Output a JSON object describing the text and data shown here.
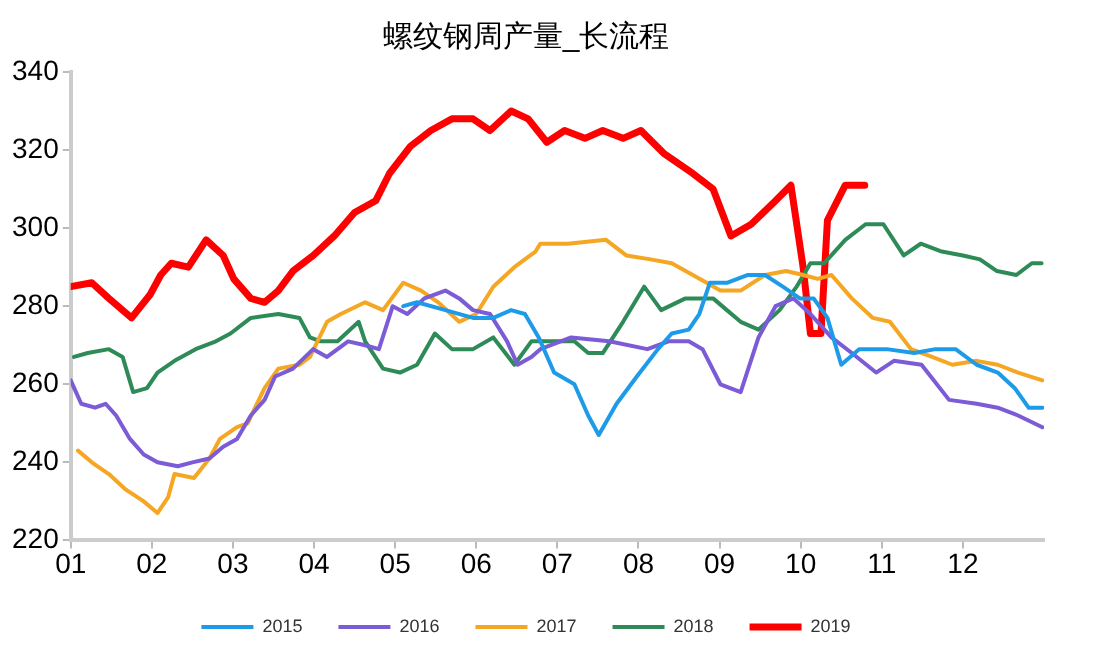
{
  "chart_data": {
    "type": "line",
    "title": "螺纹钢周产量_长流程",
    "xlim": [
      1,
      13
    ],
    "xticks": [
      {
        "value": 1,
        "label": "01"
      },
      {
        "value": 2,
        "label": "02"
      },
      {
        "value": 3,
        "label": "03"
      },
      {
        "value": 4,
        "label": "04"
      },
      {
        "value": 5,
        "label": "05"
      },
      {
        "value": 6,
        "label": "06"
      },
      {
        "value": 7,
        "label": "07"
      },
      {
        "value": 8,
        "label": "08"
      },
      {
        "value": 9,
        "label": "09"
      },
      {
        "value": 10,
        "label": "10"
      },
      {
        "value": 11,
        "label": "11"
      },
      {
        "value": 12,
        "label": "12"
      }
    ],
    "ylim": [
      220,
      340
    ],
    "yticks": [
      220,
      240,
      260,
      280,
      300,
      320,
      340
    ],
    "grid": false,
    "legend": "bottom",
    "marker": "none",
    "line_style": "solid",
    "series": [
      {
        "name": "2015",
        "color": "#1e9be8",
        "x": [
          5.1,
          5.27,
          5.62,
          5.96,
          6.21,
          6.43,
          6.6,
          6.77,
          6.96,
          7.21,
          7.38,
          7.51,
          7.73,
          7.98,
          8.24,
          8.41,
          8.62,
          8.75,
          8.88,
          9.09,
          9.35,
          9.56,
          9.78,
          9.99,
          10.16,
          10.33,
          10.5,
          10.72,
          11.06,
          11.4,
          11.66,
          11.91,
          12.17,
          12.43,
          12.64,
          12.81,
          12.98
        ],
        "values": [
          280,
          281,
          279,
          277,
          277,
          279,
          278,
          272,
          263,
          260,
          252,
          247,
          255,
          262,
          269,
          273,
          274,
          278,
          286,
          286,
          288,
          288,
          285,
          282,
          282,
          277,
          265,
          269,
          269,
          268,
          269,
          269,
          265,
          263,
          259,
          254,
          254
        ]
      },
      {
        "name": "2016",
        "color": "#7b5bd6",
        "x": [
          1.0,
          1.13,
          1.3,
          1.43,
          1.56,
          1.73,
          1.9,
          2.07,
          2.32,
          2.5,
          2.71,
          2.88,
          3.05,
          3.22,
          3.39,
          3.52,
          3.74,
          3.99,
          4.16,
          4.42,
          4.63,
          4.8,
          4.97,
          5.15,
          5.36,
          5.62,
          5.79,
          5.96,
          6.17,
          6.38,
          6.51,
          6.68,
          6.79,
          7.17,
          7.64,
          8.11,
          8.37,
          8.62,
          8.79,
          9.01,
          9.26,
          9.48,
          9.69,
          9.91,
          10.12,
          10.38,
          10.63,
          10.93,
          11.15,
          11.49,
          11.83,
          12.17,
          12.43,
          12.68,
          12.98
        ],
        "values": [
          261,
          255,
          254,
          255,
          252,
          246,
          242,
          240,
          239,
          240,
          241,
          244,
          246,
          252,
          256,
          262,
          264,
          269,
          267,
          271,
          270,
          269,
          280,
          278,
          282,
          284,
          282,
          279,
          278,
          271,
          265,
          267,
          269,
          272,
          271,
          269,
          271,
          271,
          269,
          260,
          258,
          272,
          280,
          282,
          278,
          272,
          268,
          263,
          266,
          265,
          256,
          255,
          254,
          252,
          249
        ]
      },
      {
        "name": "2017",
        "color": "#f5a623",
        "x": [
          1.09,
          1.26,
          1.47,
          1.68,
          1.9,
          2.07,
          2.2,
          2.28,
          2.52,
          2.71,
          2.84,
          3.05,
          3.18,
          3.39,
          3.56,
          3.82,
          3.95,
          4.16,
          4.33,
          4.63,
          4.85,
          5.1,
          5.32,
          5.53,
          5.79,
          6.0,
          6.21,
          6.47,
          6.73,
          6.79,
          7.13,
          7.6,
          7.85,
          8.15,
          8.41,
          8.67,
          9.01,
          9.26,
          9.56,
          9.82,
          10.03,
          10.21,
          10.38,
          10.63,
          10.89,
          11.1,
          11.36,
          11.62,
          11.87,
          12.17,
          12.43,
          12.68,
          12.98
        ],
        "values": [
          243,
          240,
          237,
          233,
          230,
          227,
          231,
          237,
          236,
          241,
          246,
          249,
          250,
          259,
          264,
          265,
          267,
          276,
          278,
          281,
          279,
          286,
          284,
          281,
          276,
          278,
          285,
          290,
          294,
          296,
          296,
          297,
          293,
          292,
          291,
          288,
          284,
          284,
          288,
          289,
          288,
          287,
          288,
          282,
          277,
          276,
          269,
          267,
          265,
          266,
          265,
          263,
          261
        ]
      },
      {
        "name": "2018",
        "color": "#2e8b57",
        "x": [
          1.04,
          1.21,
          1.47,
          1.64,
          1.77,
          1.94,
          2.07,
          2.28,
          2.54,
          2.79,
          2.97,
          3.22,
          3.56,
          3.82,
          3.95,
          4.08,
          4.29,
          4.55,
          4.63,
          4.85,
          5.06,
          5.27,
          5.49,
          5.7,
          5.96,
          6.21,
          6.47,
          6.68,
          6.87,
          7.21,
          7.38,
          7.56,
          7.81,
          8.07,
          8.28,
          8.58,
          8.92,
          9.09,
          9.26,
          9.48,
          9.74,
          9.95,
          10.12,
          10.29,
          10.55,
          10.8,
          11.02,
          11.27,
          11.48,
          11.74,
          12.0,
          12.21,
          12.42,
          12.66,
          12.85,
          12.97
        ],
        "values": [
          267,
          268,
          269,
          267,
          258,
          259,
          263,
          266,
          269,
          271,
          273,
          277,
          278,
          277,
          272,
          271,
          271,
          276,
          271,
          264,
          263,
          265,
          273,
          269,
          269,
          272,
          265,
          271,
          271,
          271,
          268,
          268,
          276,
          285,
          279,
          282,
          282,
          279,
          276,
          274,
          279,
          285,
          291,
          291,
          297,
          301,
          301,
          293,
          296,
          294,
          293,
          292,
          289,
          288,
          291,
          291
        ]
      },
      {
        "name": "2019",
        "color": "#ff0000",
        "x": [
          1.0,
          1.26,
          1.47,
          1.75,
          1.98,
          2.11,
          2.24,
          2.45,
          2.67,
          2.88,
          3.01,
          3.22,
          3.39,
          3.56,
          3.74,
          3.99,
          4.25,
          4.5,
          4.76,
          4.93,
          5.19,
          5.44,
          5.7,
          5.96,
          6.17,
          6.43,
          6.64,
          6.87,
          7.09,
          7.34,
          7.56,
          7.81,
          8.03,
          8.32,
          8.67,
          8.92,
          9.14,
          9.39,
          9.69,
          9.88,
          10.03,
          10.12,
          10.25,
          10.33,
          10.55,
          10.79
        ],
        "values": [
          285,
          286,
          282,
          277,
          283,
          288,
          291,
          290,
          297,
          293,
          287,
          282,
          281,
          284,
          289,
          293,
          298,
          304,
          307,
          314,
          321,
          325,
          328,
          328,
          325,
          330,
          328,
          322,
          325,
          323,
          325,
          323,
          325,
          319,
          314,
          310,
          298,
          301,
          307,
          311,
          290,
          273,
          273,
          302,
          311,
          311
        ]
      }
    ]
  }
}
